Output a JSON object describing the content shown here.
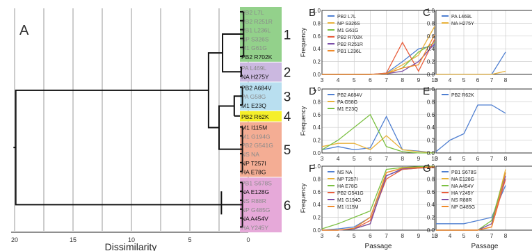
{
  "figure": {
    "dendrogram": {
      "panel_label": "A",
      "xlabel": "Dissimilarity",
      "xticks": [
        "20",
        "15",
        "10",
        "5",
        "0"
      ],
      "clusters": [
        {
          "id": "1",
          "color": "#93d18b",
          "leaves": [
            {
              "name": "PB2 L7L",
              "shade": "gray"
            },
            {
              "name": "PB2 R251R",
              "shade": "gray"
            },
            {
              "name": "PB1 L236L",
              "shade": "gray"
            },
            {
              "name": "NP S326S",
              "shade": "gray"
            },
            {
              "name": "M1 G61G",
              "shade": "gray"
            },
            {
              "name": "PB2 R702K",
              "shade": "black"
            }
          ]
        },
        {
          "id": "2",
          "color": "#cbb8e0",
          "leaves": [
            {
              "name": "PA L469L",
              "shade": "gray"
            },
            {
              "name": "NA H275Y",
              "shade": "black"
            }
          ]
        },
        {
          "id": "3",
          "color": "#b9dff0",
          "leaves": [
            {
              "name": "PB2 A684V",
              "shade": "black"
            },
            {
              "name": "PA G58G",
              "shade": "gray"
            },
            {
              "name": "M1 E23Q",
              "shade": "black"
            }
          ]
        },
        {
          "id": "4",
          "color": "#f5ef2a",
          "leaves": [
            {
              "name": "PB2 R62K",
              "shade": "black"
            }
          ]
        },
        {
          "id": "5",
          "color": "#f4ad94",
          "leaves": [
            {
              "name": "M1 I115M",
              "shade": "black"
            },
            {
              "name": "M1 G194G",
              "shade": "gray"
            },
            {
              "name": "PB2 G541G",
              "shade": "gray"
            },
            {
              "name": "NS NA",
              "shade": "gray"
            },
            {
              "name": "NP T257I",
              "shade": "black"
            },
            {
              "name": "HA E78G",
              "shade": "black"
            }
          ]
        },
        {
          "id": "6",
          "color": "#e6a9d9",
          "leaves": [
            {
              "name": "PB1 S678S",
              "shade": "gray"
            },
            {
              "name": "NA E128G",
              "shade": "black"
            },
            {
              "name": "NS R88R",
              "shade": "gray"
            },
            {
              "name": "NP G485G",
              "shade": "gray"
            },
            {
              "name": "NA A454V",
              "shade": "black"
            },
            {
              "name": "HA Y245Y",
              "shade": "gray"
            }
          ]
        }
      ]
    },
    "colors": {
      "blue": "#4f7fd1",
      "yellow": "#e8b13a",
      "green": "#7bc043",
      "red": "#e85c3b",
      "purple": "#7b4fa8",
      "orange": "#f08a2a"
    },
    "axis_labels": {
      "frequency": "Frequency",
      "passage": "Passage"
    }
  },
  "chart_data": [
    {
      "type": "line",
      "panel": "B",
      "xlabel": "",
      "ylabel": "Frequency",
      "ylim": [
        0,
        1
      ],
      "x": [
        3,
        4,
        5,
        6,
        7,
        8,
        9,
        10
      ],
      "xticks": [
        "3",
        "4",
        "5",
        "6",
        "7",
        "8",
        "9",
        "10"
      ],
      "yticks": [
        "0.0",
        "0.2",
        "0.4",
        "0.6",
        "0.8",
        "1.0"
      ],
      "series": [
        {
          "name": "PB2 L7L",
          "color": "#4f7fd1",
          "values": [
            0,
            0,
            0,
            0,
            0.02,
            0.2,
            0.4,
            0.45
          ]
        },
        {
          "name": "NP S326S",
          "color": "#e8b13a",
          "values": [
            0,
            0,
            0,
            0,
            0.01,
            0.15,
            0.3,
            0.75
          ]
        },
        {
          "name": "M1 G61G",
          "color": "#7bc043",
          "values": [
            0,
            0,
            0,
            0,
            0.01,
            0.1,
            0.35,
            0.5
          ]
        },
        {
          "name": "PB2 R702K",
          "color": "#e85c3b",
          "values": [
            0,
            0,
            0,
            0,
            0.02,
            0.5,
            0.05,
            0.55
          ]
        },
        {
          "name": "PB2 R251R",
          "color": "#7b4fa8",
          "values": [
            0,
            0,
            0,
            0,
            0.01,
            0.05,
            0.2,
            0.48
          ]
        },
        {
          "name": "PB1 L236L",
          "color": "#f08a2a",
          "values": [
            0,
            0,
            0,
            0,
            0.01,
            0.1,
            0.15,
            0.62
          ]
        }
      ]
    },
    {
      "type": "line",
      "panel": "C",
      "ylabel": "",
      "ylim": [
        0,
        1
      ],
      "x": [
        3,
        4,
        5,
        6,
        7,
        8
      ],
      "xticks": [
        "3",
        "4",
        "5",
        "6",
        "7",
        "8"
      ],
      "yticks": [
        "0.0",
        "0.2",
        "0.4",
        "0.6",
        "0.8",
        "1.0"
      ],
      "series": [
        {
          "name": "PA L469L",
          "color": "#4f7fd1",
          "values": [
            0,
            0,
            0,
            0,
            0,
            0.35
          ]
        },
        {
          "name": "NA H275Y",
          "color": "#e8b13a",
          "values": [
            0,
            0,
            0,
            0,
            0,
            0.05
          ]
        }
      ]
    },
    {
      "type": "line",
      "panel": "D",
      "ylabel": "Frequency",
      "ylim": [
        0,
        1
      ],
      "x": [
        3,
        4,
        5,
        6,
        7,
        8,
        9,
        10
      ],
      "xticks": [
        "3",
        "4",
        "5",
        "6",
        "7",
        "8",
        "9",
        "10"
      ],
      "yticks": [
        "0.0",
        "0.2",
        "0.4",
        "0.6",
        "0.8",
        "1.0"
      ],
      "series": [
        {
          "name": "PB2 A684V",
          "color": "#4f7fd1",
          "values": [
            0.05,
            0.1,
            0.05,
            0.08,
            0.57,
            0.05,
            0.03,
            0
          ]
        },
        {
          "name": "PA G58G",
          "color": "#e8b13a",
          "values": [
            0.1,
            0.15,
            0.15,
            0.05,
            0.27,
            0.05,
            0.02,
            0
          ]
        },
        {
          "name": "M1 E23Q",
          "color": "#7bc043",
          "values": [
            0.05,
            0.2,
            0.4,
            0.6,
            0.1,
            0.02,
            0,
            0
          ]
        }
      ]
    },
    {
      "type": "line",
      "panel": "E",
      "ylabel": "",
      "ylim": [
        0,
        1
      ],
      "x": [
        3,
        4,
        5,
        6,
        7,
        8
      ],
      "xticks": [
        "3",
        "4",
        "5",
        "6",
        "7",
        "8"
      ],
      "yticks": [
        "0.0",
        "0.2",
        "0.4",
        "0.6",
        "0.8",
        "1.0"
      ],
      "series": [
        {
          "name": "PB2 R62K",
          "color": "#4f7fd1",
          "values": [
            0.02,
            0.2,
            0.3,
            0.75,
            0.75,
            0.62
          ]
        }
      ]
    },
    {
      "type": "line",
      "panel": "F",
      "xlabel": "Passage",
      "ylabel": "Frequency",
      "ylim": [
        0,
        1
      ],
      "x": [
        3,
        4,
        5,
        6,
        7,
        8,
        9,
        10
      ],
      "xticks": [
        "3",
        "4",
        "5",
        "6",
        "7",
        "8",
        "9",
        "10"
      ],
      "yticks": [
        "0.0",
        "0.2",
        "0.4",
        "0.6",
        "0.8",
        "1.0"
      ],
      "series": [
        {
          "name": "NS NA",
          "color": "#4f7fd1",
          "values": [
            0,
            0.02,
            0.05,
            0.2,
            0.85,
            0.95,
            0.97,
            0.98
          ]
        },
        {
          "name": "NP T257I",
          "color": "#e8b13a",
          "values": [
            0,
            0,
            0.02,
            0.1,
            0.9,
            0.97,
            0.98,
            0.99
          ]
        },
        {
          "name": "HA E78G",
          "color": "#7bc043",
          "values": [
            0.02,
            0.1,
            0.2,
            0.3,
            0.95,
            0.98,
            0.99,
            1
          ]
        },
        {
          "name": "PB2 G541G",
          "color": "#e85c3b",
          "values": [
            0,
            0,
            0.02,
            0.15,
            0.8,
            0.95,
            0.97,
            0.98
          ]
        },
        {
          "name": "M1 G194G",
          "color": "#7b4fa8",
          "values": [
            0,
            0,
            0.02,
            0.1,
            0.85,
            0.96,
            0.98,
            0.99
          ]
        },
        {
          "name": "M1 I115M",
          "color": "#f08a2a",
          "values": [
            0,
            0,
            0.03,
            0.2,
            0.9,
            0.97,
            0.98,
            0.99
          ]
        }
      ]
    },
    {
      "type": "line",
      "panel": "G",
      "xlabel": "Passage",
      "ylabel": "",
      "ylim": [
        0,
        1
      ],
      "x": [
        3,
        4,
        5,
        6,
        7,
        8
      ],
      "xticks": [
        "3",
        "4",
        "5",
        "6",
        "7",
        "8"
      ],
      "yticks": [
        "0.0",
        "0.2",
        "0.4",
        "0.6",
        "0.8",
        "1.0"
      ],
      "series": [
        {
          "name": "PB1 S678S",
          "color": "#4f7fd1",
          "values": [
            0.1,
            0.1,
            0.1,
            0.15,
            0.2,
            0.7
          ]
        },
        {
          "name": "NA E128G",
          "color": "#e8b13a",
          "values": [
            0,
            0,
            0,
            0,
            0.1,
            0.95
          ]
        },
        {
          "name": "NA A454V",
          "color": "#7bc043",
          "values": [
            0,
            0,
            0,
            0,
            0.15,
            0.9
          ]
        },
        {
          "name": "HA Y245Y",
          "color": "#e85c3b",
          "values": [
            0,
            0,
            0,
            0,
            0.05,
            0.8
          ]
        },
        {
          "name": "NS R88R",
          "color": "#7b4fa8",
          "values": [
            0,
            0,
            0,
            0,
            0.1,
            0.85
          ]
        },
        {
          "name": "NP G485G",
          "color": "#f08a2a",
          "values": [
            0,
            0,
            0,
            0,
            0.05,
            0.9
          ]
        }
      ]
    }
  ]
}
